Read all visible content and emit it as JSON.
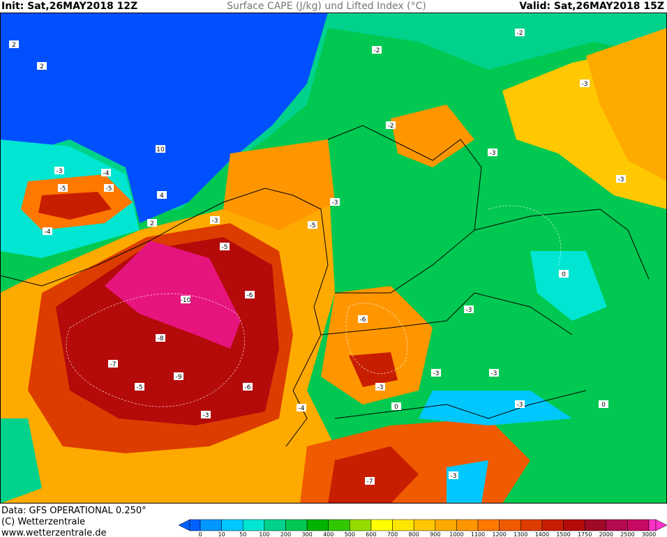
{
  "header": {
    "init": "Init: Sat,26MAY2018 12Z",
    "title": "Surface CAPE (J/kg) und Lifted Index (°C)",
    "valid": "Valid: Sat,26MAY2018 15Z"
  },
  "footer": {
    "data_source": "Data: GFS OPERATIONAL 0.250°",
    "copyright": "(C) Wetterzentrale",
    "url": "www.wetterzentrale.de"
  },
  "colorbar": {
    "labels": [
      "0",
      "10",
      "50",
      "100",
      "200",
      "300",
      "400",
      "500",
      "600",
      "700",
      "800",
      "900",
      "1000",
      "1100",
      "1200",
      "1300",
      "1400",
      "1500",
      "1750",
      "2000",
      "2500",
      "3000"
    ]
  },
  "li_labels": [
    "2",
    "2",
    "10",
    "4",
    "-3",
    "-4",
    "-5",
    "-5",
    "-4",
    "-3",
    "-5",
    "-10",
    "-8",
    "-7",
    "-9",
    "-6",
    "-5",
    "-3",
    "-4",
    "-3",
    "-2",
    "-3",
    "-3",
    "-3",
    "0",
    "0",
    "-3",
    "-5",
    "-6",
    "-7",
    "-6",
    "-3",
    "-3",
    "-3",
    "-2",
    "-2",
    "2",
    "-3",
    "-3",
    "0"
  ]
}
